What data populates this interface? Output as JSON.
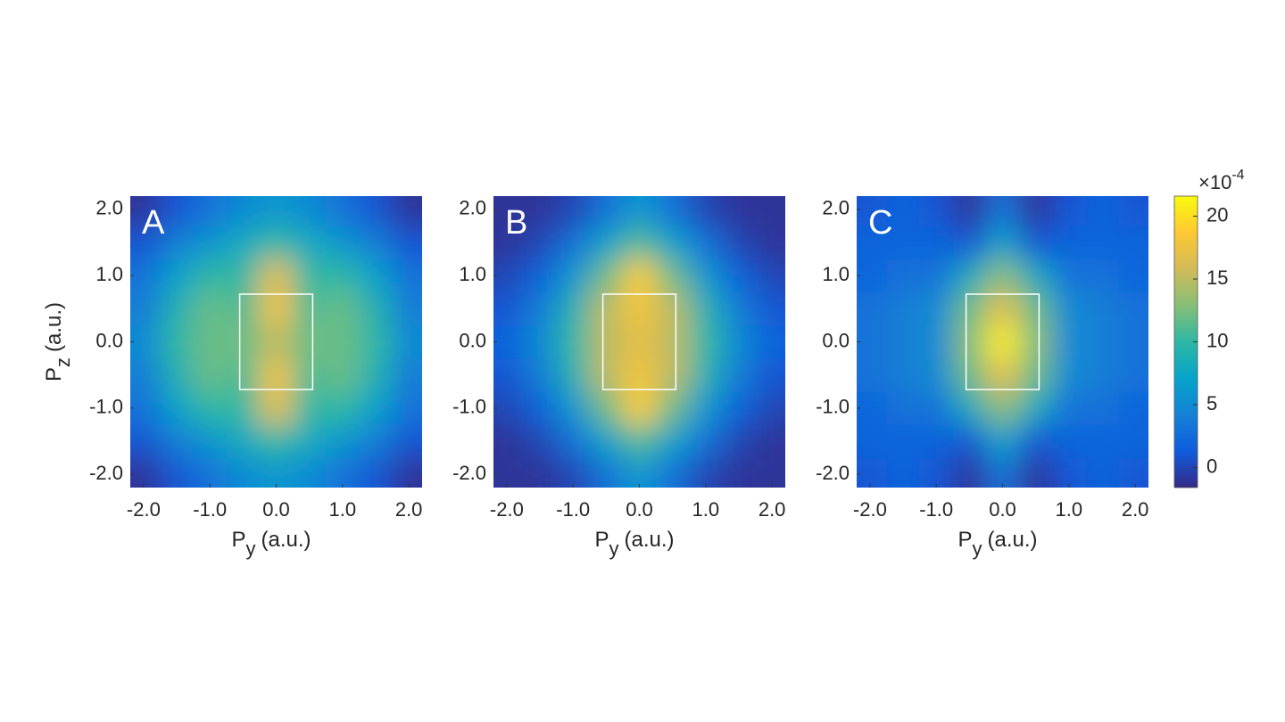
{
  "chart_data": [
    {
      "type": "contour",
      "panel": "A",
      "x": [
        -2,
        -1.5,
        -1,
        -0.5,
        0,
        0.5,
        1,
        1.5,
        2
      ],
      "y": [
        -2,
        -1.5,
        -1,
        -0.5,
        0,
        0.5,
        1,
        1.5,
        2
      ],
      "z": [
        [
          -1,
          1,
          3,
          5,
          6,
          5,
          3,
          1,
          -1
        ],
        [
          1,
          4,
          6,
          8,
          10,
          8,
          6,
          4,
          1
        ],
        [
          3,
          7,
          10,
          10,
          17,
          10,
          10,
          7,
          3
        ],
        [
          4,
          9,
          12,
          11,
          18,
          11,
          12,
          9,
          4
        ],
        [
          5,
          10,
          12,
          12,
          15,
          12,
          12,
          10,
          5
        ],
        [
          4,
          9,
          12,
          11,
          18,
          11,
          12,
          9,
          4
        ],
        [
          3,
          7,
          10,
          10,
          17,
          10,
          10,
          7,
          3
        ],
        [
          1,
          4,
          6,
          8,
          10,
          8,
          6,
          4,
          1
        ],
        [
          -1,
          1,
          3,
          5,
          6,
          5,
          3,
          1,
          -1
        ]
      ],
      "xlim": [
        -2.2,
        2.2
      ],
      "ylim": [
        -2.2,
        2.2
      ],
      "xticks": [
        {
          "value": -2,
          "label": "-2.0"
        },
        {
          "value": -1,
          "label": "-1.0"
        },
        {
          "value": 0,
          "label": "0.0"
        },
        {
          "value": 1,
          "label": "1.0"
        },
        {
          "value": 2,
          "label": "2.0"
        }
      ],
      "yticks": [
        {
          "value": -2,
          "label": "-2.0"
        },
        {
          "value": -1,
          "label": "-1.0"
        },
        {
          "value": 0,
          "label": "0.0"
        },
        {
          "value": 1,
          "label": "1.0"
        },
        {
          "value": 2,
          "label": "2.0"
        }
      ],
      "box": {
        "x": [
          -0.55,
          0.55
        ],
        "y": [
          -0.72,
          0.72
        ]
      },
      "xlabel": {
        "main": "P",
        "sub": "y",
        "unit": "(a.u.)"
      },
      "ylabel": {
        "main": "P",
        "sub": "z",
        "unit": "(a.u.)"
      }
    },
    {
      "type": "contour",
      "panel": "B",
      "x": [
        -2,
        -1.5,
        -1,
        -0.5,
        0,
        0.5,
        1,
        1.5,
        2
      ],
      "y": [
        -2,
        -1.5,
        -1,
        -0.5,
        0,
        0.5,
        1,
        1.5,
        2
      ],
      "z": [
        [
          -1,
          -1,
          0,
          3,
          6,
          3,
          0,
          -1,
          -1
        ],
        [
          -1,
          0,
          3,
          7,
          11,
          7,
          3,
          0,
          -1
        ],
        [
          0,
          2,
          6,
          12,
          19,
          12,
          6,
          2,
          0
        ],
        [
          1,
          4,
          9,
          15,
          18,
          15,
          9,
          4,
          1
        ],
        [
          2,
          5,
          10,
          15,
          17,
          15,
          10,
          5,
          2
        ],
        [
          1,
          4,
          9,
          15,
          18,
          15,
          9,
          4,
          1
        ],
        [
          0,
          2,
          6,
          12,
          19,
          12,
          6,
          2,
          0
        ],
        [
          -1,
          0,
          3,
          7,
          11,
          7,
          3,
          0,
          -1
        ],
        [
          -1,
          -1,
          0,
          3,
          6,
          3,
          0,
          -1,
          -1
        ]
      ],
      "xlim": [
        -2.2,
        2.2
      ],
      "ylim": [
        -2.2,
        2.2
      ],
      "xticks": [
        {
          "value": -2,
          "label": "-2.0"
        },
        {
          "value": -1,
          "label": "-1.0"
        },
        {
          "value": 0,
          "label": "0.0"
        },
        {
          "value": 1,
          "label": "1.0"
        },
        {
          "value": 2,
          "label": "2.0"
        }
      ],
      "yticks": [
        {
          "value": -2,
          "label": "-2.0"
        },
        {
          "value": -1,
          "label": "-1.0"
        },
        {
          "value": 0,
          "label": "0.0"
        },
        {
          "value": 1,
          "label": "1.0"
        },
        {
          "value": 2,
          "label": "2.0"
        }
      ],
      "box": {
        "x": [
          -0.55,
          0.55
        ],
        "y": [
          -0.72,
          0.72
        ]
      },
      "xlabel": {
        "main": "P",
        "sub": "y",
        "unit": "(a.u.)"
      }
    },
    {
      "type": "contour",
      "panel": "C",
      "x": [
        -2,
        -1.5,
        -1,
        -0.5,
        0,
        0.5,
        1,
        1.5,
        2
      ],
      "y": [
        -2,
        -1.5,
        -1,
        -0.5,
        0,
        0.5,
        1,
        1.5,
        2
      ],
      "z": [
        [
          1,
          2,
          1,
          -1,
          3,
          -1,
          1,
          2,
          1
        ],
        [
          2,
          2,
          2,
          1,
          7,
          1,
          2,
          2,
          2
        ],
        [
          2,
          3,
          3,
          8,
          13,
          8,
          3,
          3,
          2
        ],
        [
          3,
          4,
          5,
          12,
          17,
          12,
          5,
          4,
          3
        ],
        [
          3,
          4,
          5,
          13,
          21,
          13,
          5,
          4,
          3
        ],
        [
          3,
          4,
          5,
          12,
          17,
          12,
          5,
          4,
          3
        ],
        [
          2,
          3,
          3,
          8,
          13,
          8,
          3,
          3,
          2
        ],
        [
          2,
          2,
          2,
          1,
          7,
          1,
          2,
          2,
          2
        ],
        [
          1,
          2,
          1,
          -1,
          3,
          -1,
          1,
          2,
          1
        ]
      ],
      "xlim": [
        -2.2,
        2.2
      ],
      "ylim": [
        -2.2,
        2.2
      ],
      "xticks": [
        {
          "value": -2,
          "label": "-2.0"
        },
        {
          "value": -1,
          "label": "-1.0"
        },
        {
          "value": 0,
          "label": "0.0"
        },
        {
          "value": 1,
          "label": "1.0"
        },
        {
          "value": 2,
          "label": "2.0"
        }
      ],
      "yticks": [
        {
          "value": -2,
          "label": "-2.0"
        },
        {
          "value": -1,
          "label": "-1.0"
        },
        {
          "value": 0,
          "label": "0.0"
        },
        {
          "value": 1,
          "label": "1.0"
        },
        {
          "value": 2,
          "label": "2.0"
        }
      ],
      "box": {
        "x": [
          -0.55,
          0.55
        ],
        "y": [
          -0.72,
          0.72
        ]
      },
      "xlabel": {
        "main": "P",
        "sub": "y",
        "unit": "(a.u.)"
      }
    }
  ],
  "colorbar": {
    "clim": [
      -1.6,
      21.6
    ],
    "ticks": [
      0,
      5,
      10,
      15,
      20
    ],
    "scale_label": {
      "base": "×10",
      "exponent": "-4"
    },
    "colormap": [
      "#352a87",
      "#0f5cdd",
      "#1481d6",
      "#06a4ca",
      "#2eb7a4",
      "#87bf77",
      "#d1bb59",
      "#fec832",
      "#f9fb0e"
    ]
  }
}
